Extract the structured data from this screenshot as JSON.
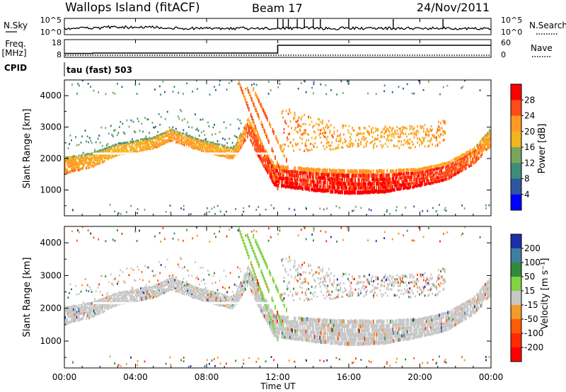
{
  "header": {
    "title": "Wallops Island (fitACF)",
    "beam": "Beam 17",
    "date": "24/Nov/2011"
  },
  "noise_panel": {
    "left_label": "N.Sky",
    "right_label": "N.Search",
    "left_ticks": [
      "10^5",
      "10^0"
    ],
    "right_ticks": [
      "10^5",
      "10^0"
    ]
  },
  "freq_panel": {
    "left_label_line1": "Freq.",
    "left_label_line2": "[MHz]",
    "right_label": "Nave",
    "left_ticks": [
      "18",
      "8"
    ],
    "right_ticks": [
      "60",
      "0"
    ],
    "freq_steps": [
      {
        "t": 0,
        "mhz": 10.2
      },
      {
        "t": 1.6,
        "mhz": 10.4
      },
      {
        "t": 12.0,
        "mhz": 14.8
      },
      {
        "t": 24,
        "mhz": 14.8
      }
    ]
  },
  "cpid_panel": {
    "label": "CPID",
    "program": "tau (fast) 503"
  },
  "power_panel": {
    "ylabel": "Slant Range [km]",
    "cbar_label": "Power [dB]",
    "cbar_ticks": [
      "28",
      "24",
      "20",
      "16",
      "12",
      "8",
      "4"
    ],
    "cbar_colors": [
      "#ff0000",
      "#ff4a1a",
      "#ff9a24",
      "#f2b51e",
      "#7aa55c",
      "#3f8c7a",
      "#2e57a0",
      "#0000ff"
    ]
  },
  "velocity_panel": {
    "ylabel": "Slant Range [km]",
    "cbar_label": "Velocity [m s⁻¹]",
    "cbar_ticks": [
      "200",
      "100",
      "50",
      "15",
      "-15",
      "-50",
      "-100",
      "-200"
    ],
    "cbar_colors": [
      "#1c2fa8",
      "#3f7fa0",
      "#2f8a3c",
      "#7fd344",
      "#c7c7c7",
      "#f29a2a",
      "#ff5a0a",
      "#ff2a00",
      "#ff0000"
    ]
  },
  "x_axis": {
    "label": "Time UT",
    "ticks": [
      "00:00",
      "04:00",
      "08:00",
      "12:00",
      "16:00",
      "20:00",
      "00:00"
    ]
  },
  "chart_data": {
    "type": "heatmap",
    "x_range_hours": [
      0,
      24
    ],
    "y_range_km": [
      180,
      4500
    ],
    "y_ticks_km": [
      1000,
      2000,
      3000,
      4000
    ],
    "x_ticks": [
      "00:00",
      "04:00",
      "08:00",
      "12:00",
      "16:00",
      "20:00",
      "00:00"
    ],
    "main_band": [
      {
        "t": 0.0,
        "lower_km": 1500,
        "upper_km": 2050,
        "power_db": 22
      },
      {
        "t": 1.5,
        "lower_km": 1700,
        "upper_km": 2200,
        "power_db": 20
      },
      {
        "t": 3.0,
        "lower_km": 2100,
        "upper_km": 2500,
        "power_db": 18
      },
      {
        "t": 5.0,
        "lower_km": 2300,
        "upper_km": 2700,
        "power_db": 20
      },
      {
        "t": 6.0,
        "lower_km": 2550,
        "upper_km": 2950,
        "power_db": 22
      },
      {
        "t": 7.5,
        "lower_km": 2250,
        "upper_km": 2650,
        "power_db": 20
      },
      {
        "t": 9.5,
        "lower_km": 1950,
        "upper_km": 2350,
        "power_db": 20
      },
      {
        "t": 10.3,
        "lower_km": 2700,
        "upper_km": 3300,
        "power_db": 24
      },
      {
        "t": 11.0,
        "lower_km": 1900,
        "upper_km": 2600,
        "power_db": 26
      },
      {
        "t": 11.8,
        "lower_km": 1100,
        "upper_km": 1800,
        "power_db": 28
      },
      {
        "t": 14.0,
        "lower_km": 950,
        "upper_km": 1700,
        "power_db": 28
      },
      {
        "t": 16.0,
        "lower_km": 850,
        "upper_km": 1650,
        "power_db": 28
      },
      {
        "t": 18.0,
        "lower_km": 900,
        "upper_km": 1650,
        "power_db": 28
      },
      {
        "t": 20.0,
        "lower_km": 1100,
        "upper_km": 1700,
        "power_db": 28
      },
      {
        "t": 21.5,
        "lower_km": 1300,
        "upper_km": 1900,
        "power_db": 26
      },
      {
        "t": 23.0,
        "lower_km": 1800,
        "upper_km": 2350,
        "power_db": 24
      },
      {
        "t": 24.0,
        "lower_km": 2400,
        "upper_km": 3000,
        "power_db": 20
      }
    ],
    "upper_band": [
      {
        "t": 12.2,
        "lower_km": 2100,
        "upper_km": 3600,
        "power_db": 22
      },
      {
        "t": 16.0,
        "lower_km": 2300,
        "upper_km": 3000,
        "power_db": 20
      },
      {
        "t": 20.0,
        "lower_km": 2300,
        "upper_km": 3000,
        "power_db": 20
      },
      {
        "t": 21.4,
        "lower_km": 2400,
        "upper_km": 3200,
        "power_db": 22
      }
    ],
    "streaks": [
      {
        "t0": 9.8,
        "r0": 4400,
        "t1": 12.0,
        "r1": 1000
      },
      {
        "t0": 10.2,
        "r0": 4300,
        "t1": 12.2,
        "r1": 1500
      },
      {
        "t0": 10.6,
        "r0": 4200,
        "t1": 12.5,
        "r1": 1900
      }
    ],
    "velocity_classes": {
      "main_band": "-15 to 15",
      "streaks": "15 to 50",
      "scattered": "mixed"
    }
  }
}
